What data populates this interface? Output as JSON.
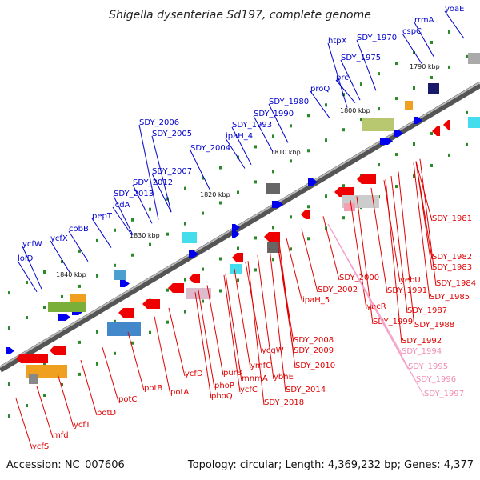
{
  "title": "Shigella dysenteriae Sd197, complete genome",
  "footer": {
    "accession": "Accession: NC_007606",
    "info": "Topology: circular; Length: 4,369,232 bp; Genes: 4,377"
  },
  "ticks": [
    "1790 kbp",
    "1800 kbp",
    "1810 kbp",
    "1820 kbp",
    "1830 kbp",
    "1840 kbp"
  ],
  "colors": {
    "forward": "#0000ee",
    "reverse": "#ee0000",
    "pseudo": "#f5a0c8",
    "backbone": "#777777",
    "tick_dot": "#2a8a2a"
  },
  "forward_labels": [
    "yoaE",
    "rrmA",
    "cspC",
    "SDY_1970",
    "htpX",
    "SDY_1975",
    "prc",
    "proQ",
    "SDY_1980",
    "SDY_1990",
    "SDY_1993",
    "SDY_2006",
    "SDY_2005",
    "ipaH_4",
    "SDY_2004",
    "SDY_2007",
    "SDY_2012",
    "SDY_2013",
    "icdA",
    "pepT",
    "cobB",
    "ycfW",
    "ycfX",
    "lolD"
  ],
  "reverse_labels": [
    "SDY_1981",
    "SDY_1982",
    "SDY_1983",
    "SDY_1984",
    "SDY_1985",
    "yebU",
    "SDY_1991",
    "SDY_1987",
    "SDY_2000",
    "SDY_2002",
    "ybcR",
    "SDY_1988",
    "SDY_1999",
    "SDY_1992",
    "ipaH_5",
    "SDY_2008",
    "SDY_2009",
    "ycgW",
    "ymfC",
    "SDY_2010",
    "ybhE",
    "mnmA",
    "purB",
    "ycfC",
    "SDY_2014",
    "phoP",
    "SDY_2018",
    "ycfD",
    "phoQ",
    "potA",
    "potB",
    "potC",
    "potD",
    "ycfT",
    "mfd",
    "ycfS"
  ],
  "pseudo_labels": [
    "SDY_1994",
    "SDY_1995",
    "SDY_1996",
    "SDY_1997"
  ]
}
